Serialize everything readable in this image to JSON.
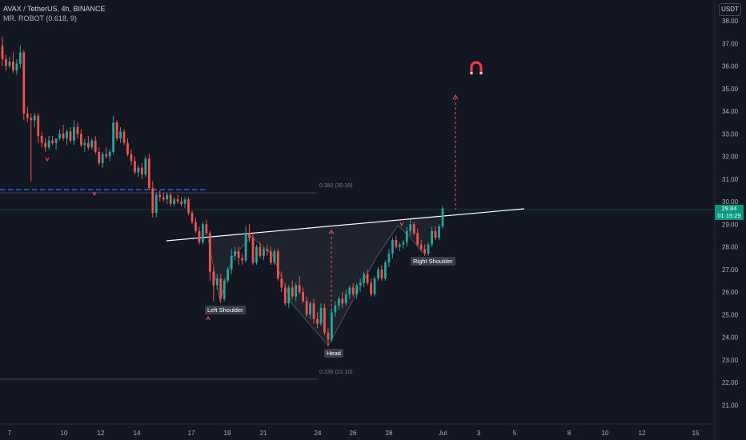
{
  "header": {
    "title": "AVAX / TetherUS, 4h, BINANCE",
    "indicator": "MR. ROBOT (0.618, 9)"
  },
  "currency_button": "USDT",
  "price_tag": {
    "price": "29.84",
    "countdown": "01:15:29",
    "color": "#089981"
  },
  "fib_levels": [
    {
      "label": "0.382 (30.39)",
      "value": 30.39
    },
    {
      "label": "0.236 (22.10)",
      "value": 22.1
    }
  ],
  "annotations": {
    "left_shoulder": "Left Shoulder",
    "head": "Head",
    "right_shoulder": "Right Shoulder"
  },
  "colors": {
    "background": "#131722",
    "up": "#26a69a",
    "down": "#ef5350",
    "neckline": "#ffffff",
    "fib_line": "#434651",
    "support_dashed": "#2962ff",
    "target_dashed": "#f7525f",
    "magnet": "#f23645"
  },
  "icons": {
    "target": "magnet-icon"
  },
  "chart_data": {
    "type": "candlestick",
    "title": "AVAX / TetherUS, 4h, BINANCE",
    "y_axis": {
      "ticks": [
        "38.00",
        "37.00",
        "36.00",
        "35.00",
        "34.00",
        "33.00",
        "32.00",
        "31.00",
        "30.00",
        "29.00",
        "28.00",
        "27.00",
        "26.00",
        "25.00",
        "24.00",
        "23.00",
        "22.00",
        "21.00"
      ],
      "range": [
        20.5,
        38.3
      ]
    },
    "x_axis": {
      "ticks": [
        "7",
        "10",
        "12",
        "14",
        "17",
        "19",
        "21",
        "24",
        "26",
        "28",
        "Jul",
        "3",
        "5",
        "8",
        "10",
        "12",
        "15"
      ]
    },
    "neckline": {
      "from": 29.38,
      "to": 30.33
    },
    "projected_target": 34.7,
    "head_low": 23.6,
    "series": [
      {
        "name": "AVAX / TetherUS",
        "ohlc": [
          [
            36.9,
            37.3,
            36.0,
            36.3
          ],
          [
            36.3,
            36.5,
            35.8,
            36.0
          ],
          [
            36.0,
            36.4,
            35.9,
            36.2
          ],
          [
            36.2,
            36.6,
            35.7,
            35.8
          ],
          [
            35.8,
            36.3,
            35.6,
            36.1
          ],
          [
            36.1,
            36.9,
            35.9,
            36.6
          ],
          [
            36.6,
            36.7,
            33.6,
            33.9
          ],
          [
            33.9,
            34.2,
            33.5,
            33.7
          ],
          [
            33.7,
            33.9,
            30.9,
            33.6
          ],
          [
            33.6,
            33.9,
            33.3,
            33.8
          ],
          [
            33.8,
            33.9,
            32.6,
            32.9
          ],
          [
            32.9,
            33.1,
            32.4,
            32.6
          ],
          [
            32.6,
            32.8,
            32.2,
            32.4
          ],
          [
            32.4,
            32.9,
            32.3,
            32.7
          ],
          [
            32.7,
            32.9,
            32.5,
            32.6
          ],
          [
            32.6,
            32.8,
            32.3,
            32.8
          ],
          [
            32.8,
            33.2,
            32.7,
            33.0
          ],
          [
            33.0,
            33.4,
            32.7,
            32.8
          ],
          [
            32.8,
            33.2,
            32.5,
            33.1
          ],
          [
            33.1,
            33.3,
            32.6,
            32.7
          ],
          [
            32.7,
            33.6,
            32.5,
            33.3
          ],
          [
            33.3,
            33.5,
            32.8,
            33.0
          ],
          [
            33.0,
            33.2,
            32.4,
            32.5
          ],
          [
            32.5,
            32.8,
            32.2,
            32.6
          ],
          [
            32.6,
            32.9,
            32.3,
            32.4
          ],
          [
            32.4,
            32.8,
            32.3,
            32.7
          ],
          [
            32.7,
            32.9,
            32.1,
            32.2
          ],
          [
            32.2,
            32.4,
            31.6,
            31.7
          ],
          [
            31.7,
            32.2,
            31.5,
            32.1
          ],
          [
            32.1,
            32.4,
            31.9,
            32.0
          ],
          [
            32.0,
            32.3,
            31.8,
            32.2
          ],
          [
            32.2,
            33.8,
            32.1,
            33.5
          ],
          [
            33.5,
            33.6,
            32.7,
            32.8
          ],
          [
            32.8,
            33.3,
            32.6,
            33.1
          ],
          [
            33.1,
            33.2,
            32.5,
            32.6
          ],
          [
            32.6,
            32.8,
            32.0,
            32.1
          ],
          [
            32.1,
            32.3,
            31.6,
            31.8
          ],
          [
            31.8,
            32.0,
            31.2,
            31.3
          ],
          [
            31.3,
            31.6,
            31.1,
            31.5
          ],
          [
            31.5,
            31.7,
            31.0,
            31.2
          ],
          [
            31.2,
            32.0,
            31.1,
            31.9
          ],
          [
            31.9,
            32.1,
            30.5,
            30.6
          ],
          [
            30.6,
            30.9,
            29.3,
            29.5
          ],
          [
            29.5,
            30.4,
            29.3,
            30.3
          ],
          [
            30.3,
            30.5,
            30.0,
            30.2
          ],
          [
            30.2,
            30.4,
            30.0,
            30.1
          ],
          [
            30.1,
            30.4,
            29.9,
            30.3
          ],
          [
            30.3,
            30.4,
            29.8,
            29.9
          ],
          [
            29.9,
            30.2,
            29.8,
            30.1
          ],
          [
            30.1,
            30.3,
            29.9,
            30.0
          ],
          [
            30.0,
            30.2,
            29.8,
            29.9
          ],
          [
            29.9,
            30.2,
            29.7,
            30.1
          ],
          [
            30.1,
            30.2,
            29.4,
            29.5
          ],
          [
            29.5,
            29.6,
            29.0,
            29.1
          ],
          [
            29.1,
            29.3,
            28.6,
            28.7
          ],
          [
            28.7,
            28.9,
            28.1,
            28.2
          ],
          [
            28.2,
            29.1,
            28.1,
            29.0
          ],
          [
            29.0,
            29.2,
            28.5,
            28.6
          ],
          [
            28.6,
            28.7,
            26.5,
            26.9
          ],
          [
            26.9,
            27.1,
            25.6,
            26.3
          ],
          [
            26.3,
            26.8,
            26.1,
            26.6
          ],
          [
            26.6,
            26.8,
            25.5,
            25.7
          ],
          [
            25.7,
            26.6,
            25.6,
            26.5
          ],
          [
            26.5,
            27.1,
            26.4,
            27.0
          ],
          [
            27.0,
            27.9,
            26.8,
            27.6
          ],
          [
            27.6,
            28.0,
            27.4,
            27.8
          ],
          [
            27.8,
            28.0,
            27.2,
            27.5
          ],
          [
            27.5,
            27.7,
            27.2,
            27.4
          ],
          [
            27.4,
            28.9,
            27.3,
            28.6
          ],
          [
            28.6,
            29.0,
            28.2,
            28.4
          ],
          [
            28.4,
            28.6,
            27.2,
            27.3
          ],
          [
            27.3,
            28.1,
            27.2,
            28.0
          ],
          [
            28.0,
            28.2,
            27.5,
            27.6
          ],
          [
            27.6,
            28.0,
            27.4,
            27.9
          ],
          [
            27.9,
            28.1,
            27.6,
            27.8
          ],
          [
            27.8,
            28.0,
            27.2,
            27.3
          ],
          [
            27.3,
            27.9,
            27.2,
            27.8
          ],
          [
            27.8,
            27.9,
            26.5,
            26.6
          ],
          [
            26.6,
            26.9,
            26.0,
            26.2
          ],
          [
            26.2,
            26.4,
            25.4,
            25.5
          ],
          [
            25.5,
            26.3,
            25.3,
            26.2
          ],
          [
            26.2,
            26.5,
            25.7,
            25.8
          ],
          [
            25.8,
            26.4,
            25.6,
            26.3
          ],
          [
            26.3,
            26.7,
            25.9,
            26.0
          ],
          [
            26.0,
            26.2,
            25.5,
            25.6
          ],
          [
            25.6,
            25.8,
            24.9,
            25.0
          ],
          [
            25.0,
            25.6,
            24.8,
            25.5
          ],
          [
            25.5,
            25.7,
            24.6,
            24.8
          ],
          [
            24.8,
            25.1,
            24.4,
            24.6
          ],
          [
            24.6,
            25.5,
            24.5,
            25.3
          ],
          [
            25.3,
            25.5,
            24.1,
            24.2
          ],
          [
            24.2,
            24.4,
            23.6,
            23.9
          ],
          [
            23.9,
            25.3,
            23.8,
            25.1
          ],
          [
            25.1,
            25.6,
            24.9,
            25.4
          ],
          [
            25.4,
            25.8,
            25.2,
            25.7
          ],
          [
            25.7,
            26.0,
            25.3,
            25.5
          ],
          [
            25.5,
            26.1,
            25.4,
            25.9
          ],
          [
            25.9,
            26.3,
            25.7,
            26.2
          ],
          [
            26.2,
            26.4,
            25.8,
            25.9
          ],
          [
            25.9,
            26.4,
            25.7,
            26.3
          ],
          [
            26.3,
            26.6,
            26.0,
            26.4
          ],
          [
            26.4,
            26.9,
            26.2,
            26.8
          ],
          [
            26.8,
            27.0,
            26.3,
            26.4
          ],
          [
            26.4,
            26.6,
            25.8,
            25.9
          ],
          [
            25.9,
            26.7,
            25.8,
            26.6
          ],
          [
            26.6,
            27.1,
            26.5,
            27.0
          ],
          [
            27.0,
            27.2,
            26.5,
            26.6
          ],
          [
            26.6,
            27.4,
            26.5,
            27.3
          ],
          [
            27.3,
            27.9,
            27.1,
            27.7
          ],
          [
            27.7,
            28.4,
            27.5,
            28.3
          ],
          [
            28.3,
            28.5,
            27.9,
            28.0
          ],
          [
            28.0,
            28.2,
            27.8,
            28.1
          ],
          [
            28.1,
            28.3,
            27.9,
            28.2
          ],
          [
            28.2,
            28.9,
            28.0,
            28.7
          ],
          [
            28.7,
            29.2,
            28.5,
            29.0
          ],
          [
            29.0,
            29.1,
            28.5,
            28.6
          ],
          [
            28.6,
            28.8,
            28.0,
            28.1
          ],
          [
            28.1,
            28.3,
            27.8,
            27.9
          ],
          [
            27.9,
            28.1,
            27.6,
            27.7
          ],
          [
            27.7,
            28.2,
            27.6,
            28.1
          ],
          [
            28.1,
            28.9,
            28.0,
            28.7
          ],
          [
            28.7,
            28.9,
            28.3,
            28.4
          ],
          [
            28.4,
            29.0,
            28.3,
            28.9
          ],
          [
            28.9,
            29.8,
            28.8,
            29.7
          ]
        ]
      }
    ]
  }
}
